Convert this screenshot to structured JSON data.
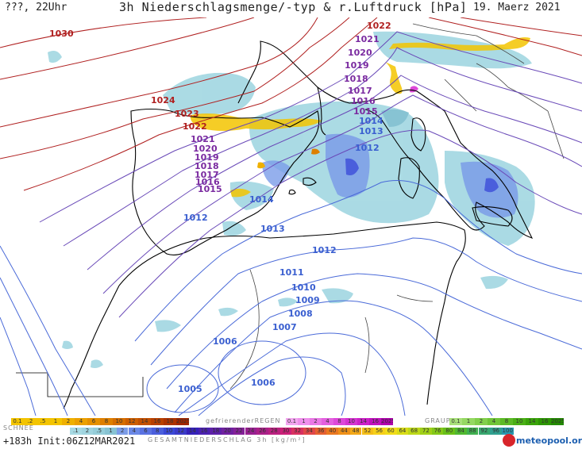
{
  "header": {
    "left": "???, 22Uhr",
    "title": "3h Niederschlagsmenge/-typ & r.Luftdruck [hPa]",
    "date": "19. Maerz 2021"
  },
  "isobars": [
    {
      "label": "1030",
      "color": "#b02020"
    },
    {
      "label": "1024",
      "color": "#b02020"
    },
    {
      "label": "1023",
      "color": "#b02020"
    },
    {
      "label": "1022",
      "color": "#b02020"
    },
    {
      "label": "1022",
      "color": "#b02020"
    },
    {
      "label": "1021",
      "color": "#7a2aa0"
    },
    {
      "label": "1021",
      "color": "#7a2aa0"
    },
    {
      "label": "1020",
      "color": "#7a2aa0"
    },
    {
      "label": "1020",
      "color": "#7a2aa0"
    },
    {
      "label": "1019",
      "color": "#7a2aa0"
    },
    {
      "label": "1019",
      "color": "#7a2aa0"
    },
    {
      "label": "1018",
      "color": "#7a2aa0"
    },
    {
      "label": "1018",
      "color": "#7a2aa0"
    },
    {
      "label": "1017",
      "color": "#7a2aa0"
    },
    {
      "label": "1017",
      "color": "#7a2aa0"
    },
    {
      "label": "1016",
      "color": "#7a2aa0"
    },
    {
      "label": "1016",
      "color": "#7a2aa0"
    },
    {
      "label": "1015",
      "color": "#7a2aa0"
    },
    {
      "label": "1015",
      "color": "#7a2aa0"
    },
    {
      "label": "1014",
      "color": "#3a5fd0"
    },
    {
      "label": "1014",
      "color": "#3a5fd0"
    },
    {
      "label": "1013",
      "color": "#3a5fd0"
    },
    {
      "label": "1013",
      "color": "#3a5fd0"
    },
    {
      "label": "1012",
      "color": "#3a5fd0"
    },
    {
      "label": "1012",
      "color": "#3a5fd0"
    },
    {
      "label": "1012",
      "color": "#3a5fd0"
    },
    {
      "label": "1011",
      "color": "#3a5fd0"
    },
    {
      "label": "1010",
      "color": "#3a5fd0"
    },
    {
      "label": "1009",
      "color": "#3a5fd0"
    },
    {
      "label": "1008",
      "color": "#3a5fd0"
    },
    {
      "label": "1007",
      "color": "#3a5fd0"
    },
    {
      "label": "1006",
      "color": "#3a5fd0"
    },
    {
      "label": "1006",
      "color": "#3a5fd0"
    },
    {
      "label": "1005",
      "color": "#3a5fd0"
    }
  ],
  "legend": {
    "row1": [
      {
        "label": "0.1",
        "color": "#f3c400"
      },
      {
        "label": ".2",
        "color": "#f3c400"
      },
      {
        "label": ".5",
        "color": "#f3c400"
      },
      {
        "label": "1",
        "color": "#f3c400"
      },
      {
        "label": "2",
        "color": "#efb000"
      },
      {
        "label": "4",
        "color": "#eba000"
      },
      {
        "label": "6",
        "color": "#e59000"
      },
      {
        "label": "8",
        "color": "#de7f00"
      },
      {
        "label": "10",
        "color": "#d56e00"
      },
      {
        "label": "12",
        "color": "#cc5e00"
      },
      {
        "label": "14",
        "color": "#c24f00"
      },
      {
        "label": "16",
        "color": "#b84000"
      },
      {
        "label": "18",
        "color": "#ac3200"
      },
      {
        "label": "2025+",
        "color": "#a02500"
      }
    ],
    "schnee": "SCHNEE",
    "regen_label": "gefrierenderREGEN",
    "regen": [
      {
        "label": "0.1",
        "color": "#f3a6f0"
      },
      {
        "label": "1",
        "color": "#ef8fec"
      },
      {
        "label": "2",
        "color": "#ea78e6"
      },
      {
        "label": "4",
        "color": "#e460e0"
      },
      {
        "label": "8",
        "color": "#dd48d9"
      },
      {
        "label": "10",
        "color": "#d533d1"
      },
      {
        "label": "14",
        "color": "#cc20c8"
      },
      {
        "label": "16",
        "color": "#c010bd"
      },
      {
        "label": "2025+",
        "color": "#b000ae"
      }
    ],
    "graupel_label": "GRAUPEL",
    "graupel": [
      {
        "label": "0.1",
        "color": "#a8e07a"
      },
      {
        "label": "1",
        "color": "#95d862"
      },
      {
        "label": "2",
        "color": "#82cf4c"
      },
      {
        "label": "4",
        "color": "#6fc538"
      },
      {
        "label": "8",
        "color": "#5cba26"
      },
      {
        "label": "10",
        "color": "#4aaf16"
      },
      {
        "label": "14",
        "color": "#3aa30a"
      },
      {
        "label": "16",
        "color": "#2d9603"
      },
      {
        "label": "2025+",
        "color": "#238a00"
      }
    ],
    "row2": [
      {
        "label": ".1",
        "color": "#a6d9e3"
      },
      {
        "label": "2",
        "color": "#9fd4df"
      },
      {
        "label": ".5",
        "color": "#94cdd9"
      },
      {
        "label": "1",
        "color": "#87c3d3"
      },
      {
        "label": "2",
        "color": "#7b9ce8"
      },
      {
        "label": "4",
        "color": "#6a88e6"
      },
      {
        "label": "6",
        "color": "#5a72e2"
      },
      {
        "label": "8",
        "color": "#4a5edc"
      },
      {
        "label": "10",
        "color": "#3a48d6"
      },
      {
        "label": "12",
        "color": "#3a3ac8"
      },
      {
        "label": "14",
        "color": "#3420b8"
      },
      {
        "label": "16",
        "color": "#4a20b0"
      },
      {
        "label": "18",
        "color": "#5d20a8"
      },
      {
        "label": "20",
        "color": "#7020a0"
      },
      {
        "label": "22",
        "color": "#842098"
      },
      {
        "label": "24",
        "color": "#982090"
      },
      {
        "label": "26",
        "color": "#aa2088"
      },
      {
        "label": "28",
        "color": "#bb2080"
      },
      {
        "label": "30",
        "color": "#cc2078"
      },
      {
        "label": "32",
        "color": "#d83060"
      },
      {
        "label": "34",
        "color": "#e04848"
      },
      {
        "label": "36",
        "color": "#e56030"
      },
      {
        "label": "40",
        "color": "#ea7820"
      },
      {
        "label": "44",
        "color": "#ee9018"
      },
      {
        "label": "48",
        "color": "#f2a818"
      },
      {
        "label": "52",
        "color": "#f4be18"
      },
      {
        "label": "56",
        "color": "#f6d018"
      },
      {
        "label": "60",
        "color": "#f0dc18"
      },
      {
        "label": "64",
        "color": "#d8dc18"
      },
      {
        "label": "68",
        "color": "#bcd818"
      },
      {
        "label": "72",
        "color": "#a0d018"
      },
      {
        "label": "76",
        "color": "#84c818"
      },
      {
        "label": "80",
        "color": "#68c018"
      },
      {
        "label": "84",
        "color": "#50b830"
      },
      {
        "label": "88",
        "color": "#40b050"
      },
      {
        "label": "92",
        "color": "#38a870"
      },
      {
        "label": "96",
        "color": "#30a090"
      },
      {
        "label": "100",
        "color": "#2898b0"
      }
    ],
    "gesamt": "GESAMTNIEDERSCHLAG 3h [kg/m²]"
  },
  "footer": {
    "run": "+183h Init:06Z12MAR2021",
    "logo": "meteopool.org"
  }
}
